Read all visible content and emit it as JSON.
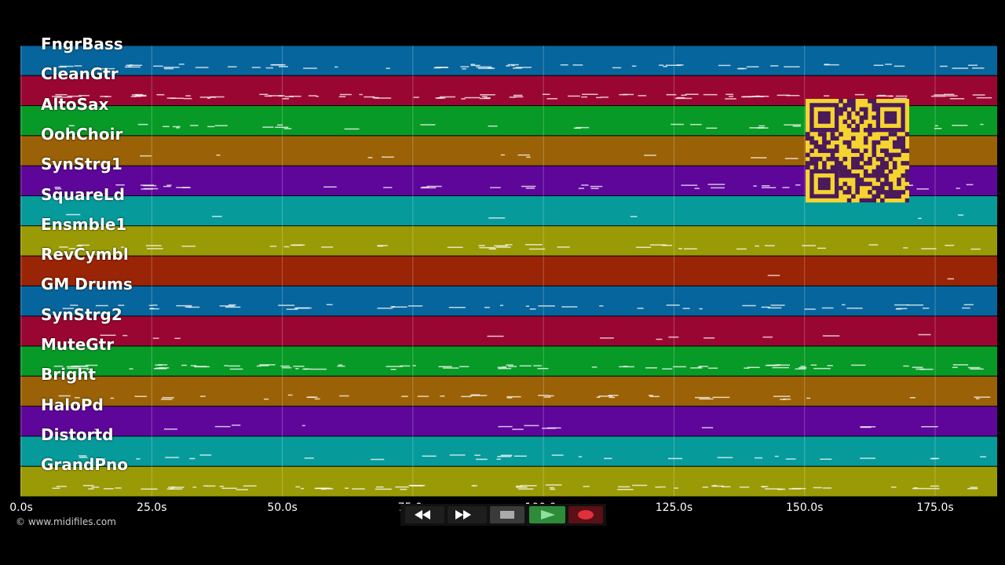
{
  "tracks": [
    {
      "name": "FngrBass",
      "color": "#06659c"
    },
    {
      "name": "CleanGtr",
      "color": "#9a0632"
    },
    {
      "name": "AltoSax",
      "color": "#079a26"
    },
    {
      "name": "OohChoir",
      "color": "#9a6106"
    },
    {
      "name": "SynStrg1",
      "color": "#5e069a"
    },
    {
      "name": "SquareLd",
      "color": "#079a9a"
    },
    {
      "name": "Ensmble1",
      "color": "#9a9a06"
    },
    {
      "name": "RevCymbl",
      "color": "#9a2406"
    },
    {
      "name": "GM Drums",
      "color": "#06659c"
    },
    {
      "name": "SynStrg2",
      "color": "#9a0632"
    },
    {
      "name": "MuteGtr",
      "color": "#079a26"
    },
    {
      "name": "Bright",
      "color": "#9a6106"
    },
    {
      "name": "HaloPd",
      "color": "#5e069a"
    },
    {
      "name": "Distortd",
      "color": "#079a9a"
    },
    {
      "name": "GrandPno",
      "color": "#9a9a06"
    }
  ],
  "timeline": {
    "ticks": [
      "0.0s",
      "25.0s",
      "50.0s",
      "75.0s",
      "100.0s",
      "125.0s",
      "150.0s",
      "175.0s"
    ],
    "tick_seconds": [
      0,
      25,
      50,
      75,
      100,
      125,
      150,
      175
    ]
  },
  "copyright": "© www.midifiles.com",
  "transport": {
    "rewind": "rewind-icon",
    "fast_forward": "fast-forward-icon",
    "stop": "stop-icon",
    "play": "play-icon",
    "record": "record-icon",
    "play_color": "#2e8b3a",
    "record_color": "#e0303a"
  },
  "qr_code": "qr-code-icon"
}
